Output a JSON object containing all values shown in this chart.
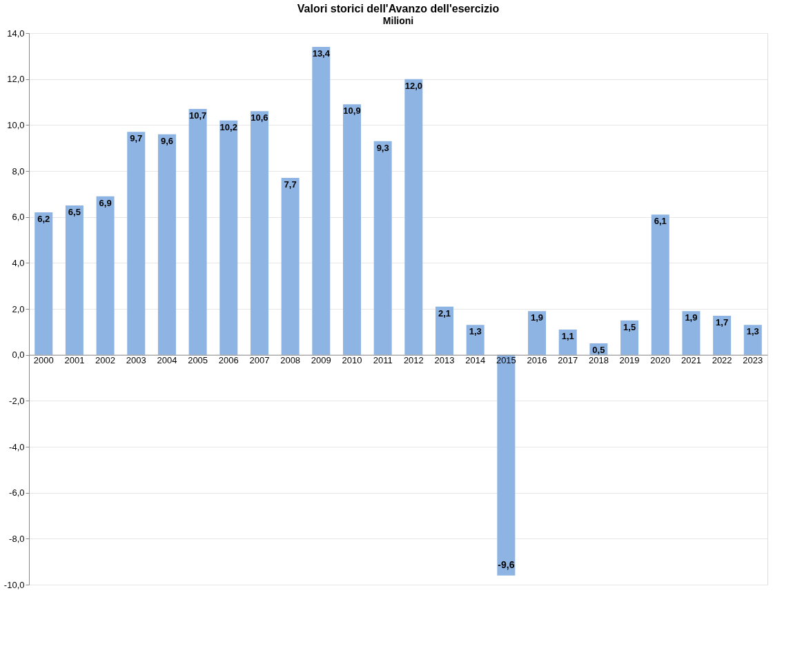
{
  "chart_data": {
    "type": "bar",
    "title": "Valori storici dell'Avanzo  dell'esercizio",
    "subtitle": "Milioni",
    "categories": [
      "2000",
      "2001",
      "2002",
      "2003",
      "2004",
      "2005",
      "2006",
      "2007",
      "2008",
      "2009",
      "2010",
      "2011",
      "2012",
      "2013",
      "2014",
      "2015",
      "2016",
      "2017",
      "2018",
      "2019",
      "2020",
      "2021",
      "2022",
      "2023"
    ],
    "values": [
      6.2,
      6.5,
      6.9,
      9.7,
      9.6,
      10.7,
      10.2,
      10.6,
      7.7,
      13.4,
      10.9,
      9.3,
      12.0,
      2.1,
      1.3,
      -9.6,
      1.9,
      1.1,
      0.5,
      1.5,
      6.1,
      1.9,
      1.7,
      1.3
    ],
    "value_labels": [
      "6,2",
      "6,5",
      "6,9",
      "9,7",
      "9,6",
      "10,7",
      "10,2",
      "10,6",
      "7,7",
      "13,4",
      "10,9",
      "9,3",
      "12,0",
      "2,1",
      "1,3",
      "-9,6",
      "1,9",
      "1,1",
      "0,5",
      "1,5",
      "6,1",
      "1,9",
      "1,7",
      "1,3"
    ],
    "color": "#8db4e2",
    "ylim": [
      -10,
      14
    ],
    "yticks": [
      {
        "value": -10,
        "label": "-10,0"
      },
      {
        "value": -8,
        "label": "-8,0"
      },
      {
        "value": -6,
        "label": "-6,0"
      },
      {
        "value": -4,
        "label": "-4,0"
      },
      {
        "value": -2,
        "label": "-2,0"
      },
      {
        "value": 0,
        "label": "0,0"
      },
      {
        "value": 2,
        "label": "2,0"
      },
      {
        "value": 4,
        "label": "4,0"
      },
      {
        "value": 6,
        "label": "6,0"
      },
      {
        "value": 8,
        "label": "8,0"
      },
      {
        "value": 10,
        "label": "10,0"
      },
      {
        "value": 12,
        "label": "12,0"
      },
      {
        "value": 14,
        "label": "14,0"
      }
    ],
    "grid": "y"
  }
}
